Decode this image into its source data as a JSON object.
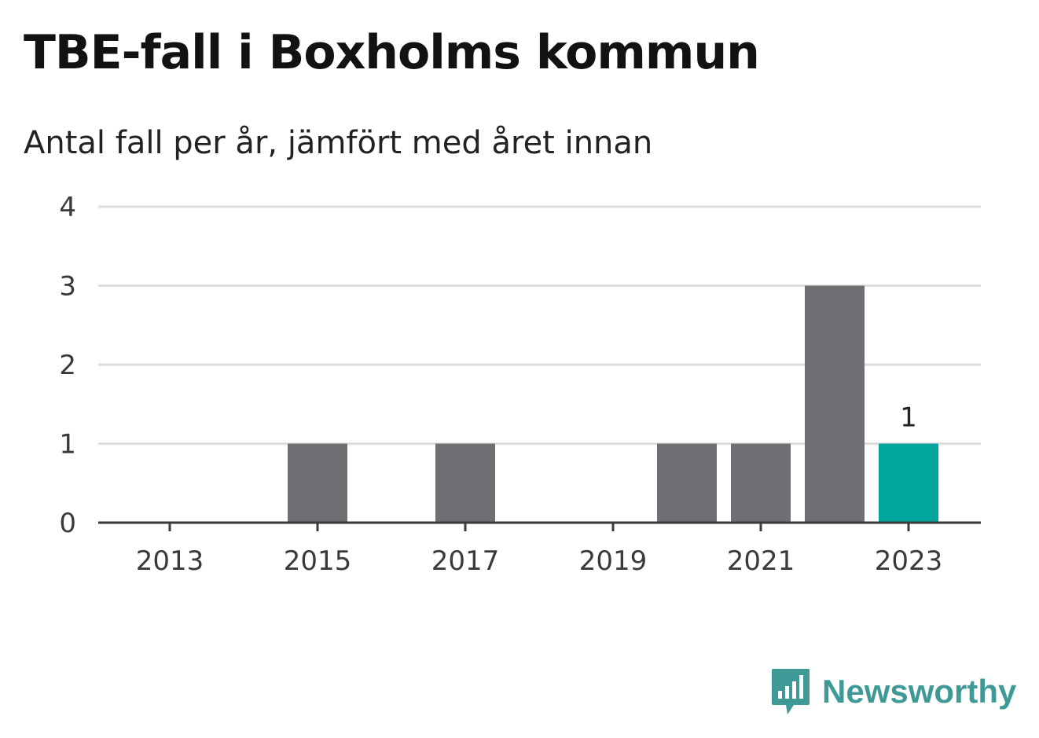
{
  "header": {
    "title": "TBE-fall i Boxholms kommun",
    "subtitle": "Antal fall per år, jämfört med året innan"
  },
  "brand": {
    "name": "Newsworthy",
    "icon": "newsworthy-logo-icon",
    "color": "#3f9a97"
  },
  "chart_data": {
    "type": "bar",
    "categories": [
      "2013",
      "2014",
      "2015",
      "2016",
      "2017",
      "2018",
      "2019",
      "2020",
      "2021",
      "2022",
      "2023"
    ],
    "values": [
      0,
      0,
      1,
      0,
      1,
      0,
      0,
      1,
      1,
      3,
      1
    ],
    "x_tick_labels": [
      "2013",
      "2015",
      "2017",
      "2019",
      "2021",
      "2023"
    ],
    "y_ticks": [
      0,
      1,
      2,
      3,
      4
    ],
    "ylim": [
      0,
      4
    ],
    "grid": true,
    "highlight": {
      "category": "2023",
      "label": "1"
    },
    "colors": {
      "bar": "#6f6e73",
      "highlight": "#00a59b",
      "grid": "#dcdcdc",
      "axis": "#3a3a3a"
    }
  }
}
